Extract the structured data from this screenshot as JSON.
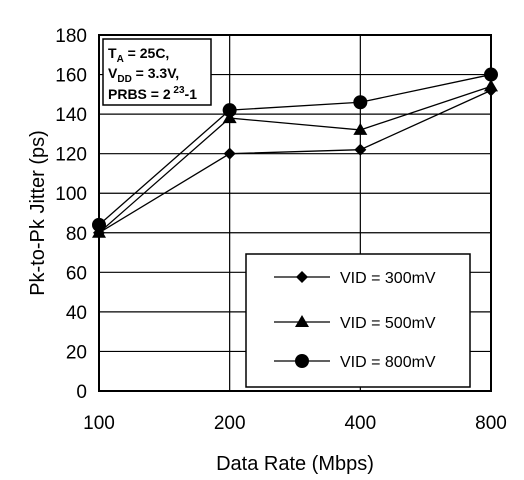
{
  "chart_data": {
    "type": "line",
    "title": "",
    "xlabel": "Data Rate (Mbps)",
    "ylabel": "Pk-to-Pk Jitter (ps)",
    "categories": [
      "100",
      "200",
      "400",
      "800"
    ],
    "ylim": [
      0,
      180
    ],
    "yticks": [
      "0",
      "20",
      "40",
      "60",
      "80",
      "100",
      "120",
      "140",
      "160",
      "180"
    ],
    "grid": true,
    "legend_position": "bottom-right",
    "series": [
      {
        "name": "VID = 300mV",
        "marker": "diamond",
        "values": [
          80,
          120,
          122,
          152
        ]
      },
      {
        "name": "VID = 500mV",
        "marker": "triangle",
        "values": [
          80,
          138,
          132,
          154
        ]
      },
      {
        "name": "VID = 800mV",
        "marker": "circle",
        "values": [
          84,
          142,
          146,
          160
        ]
      }
    ],
    "conditions": {
      "line1_main": "T",
      "line1_sub": "A",
      "line1_rest": " = 25C,",
      "line2_main": "V",
      "line2_sub": "DD",
      "line2_rest": " = 3.3V,",
      "line3_main": "PRBS = 2",
      "line3_sup": " 23",
      "line3_rest": "-1"
    }
  }
}
